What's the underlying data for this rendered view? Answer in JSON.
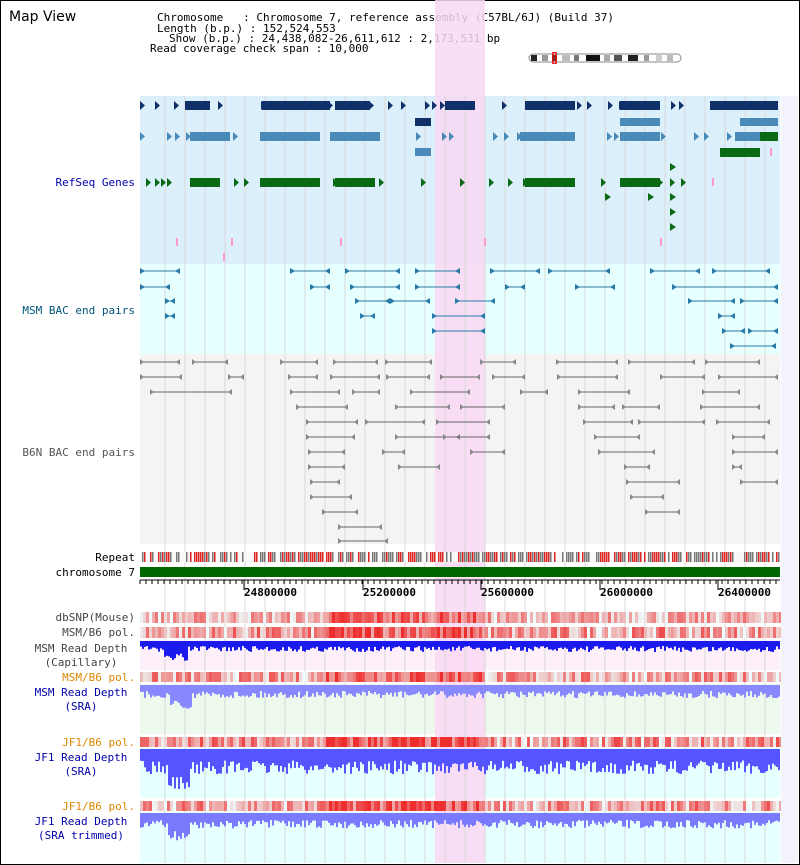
{
  "view": {
    "title": "Map View",
    "info": [
      "Chromosome   : Chromosome 7, reference assembly (C57BL/6J) (Build 37)",
      "Length (b.p.) : 152,524,553",
      "Show (b.p.) : 24,438,082-26,611,612 : 2,173,531 bp",
      "Read coverage check span : 10,000"
    ]
  },
  "tracks": {
    "refseq": {
      "label": "RefSeq Genes",
      "color": "#0000aa"
    },
    "msm_bac": {
      "label": "MSM BAC end pairs",
      "color": "#005577"
    },
    "b6n_bac": {
      "label": "B6N BAC end pairs",
      "color": "#555555"
    },
    "repeat": {
      "label": "Repeat"
    },
    "chromosome": {
      "label": "chromosome 7"
    },
    "dbsnp": {
      "label": "dbSNP(Mouse)"
    },
    "msm_b6_pol_1": {
      "label": "MSM/B6 pol."
    },
    "msm_rd_cap": {
      "label": "MSM Read Depth\n(Capillary)"
    },
    "msm_b6_pol_2": {
      "label": "MSM/B6 pol.",
      "color": "#dd8800"
    },
    "msm_rd_sra": {
      "label": "MSM Read Depth\n(SRA)",
      "color": "#0000aa"
    },
    "jf1_b6_pol_1": {
      "label": "JF1/B6 pol.",
      "color": "#dd8800"
    },
    "jf1_rd_sra": {
      "label": "JF1 Read Depth\n(SRA)",
      "color": "#0000aa"
    },
    "jf1_b6_pol_2": {
      "label": "JF1/B6 pol.",
      "color": "#dd8800"
    },
    "jf1_rd_trim": {
      "label": "JF1 Read Depth\n(SRA trimmed)",
      "color": "#0000aa"
    }
  },
  "axis": {
    "ticks": [
      "24800000",
      "25200000",
      "25600000",
      "26000000",
      "26400000"
    ]
  },
  "colors": {
    "highlight": "#f9d8f3",
    "refseq_bg": "#dcf0fb",
    "bac_bg": "#e6ffff",
    "refseq_dark": "#10306a",
    "refseq_mid": "#4a8ab8",
    "refseq_green": "#0a6a14",
    "chromosome_bar": "#006600",
    "snp_red": "#ee2222",
    "depth_blue": "#2222ee"
  }
}
